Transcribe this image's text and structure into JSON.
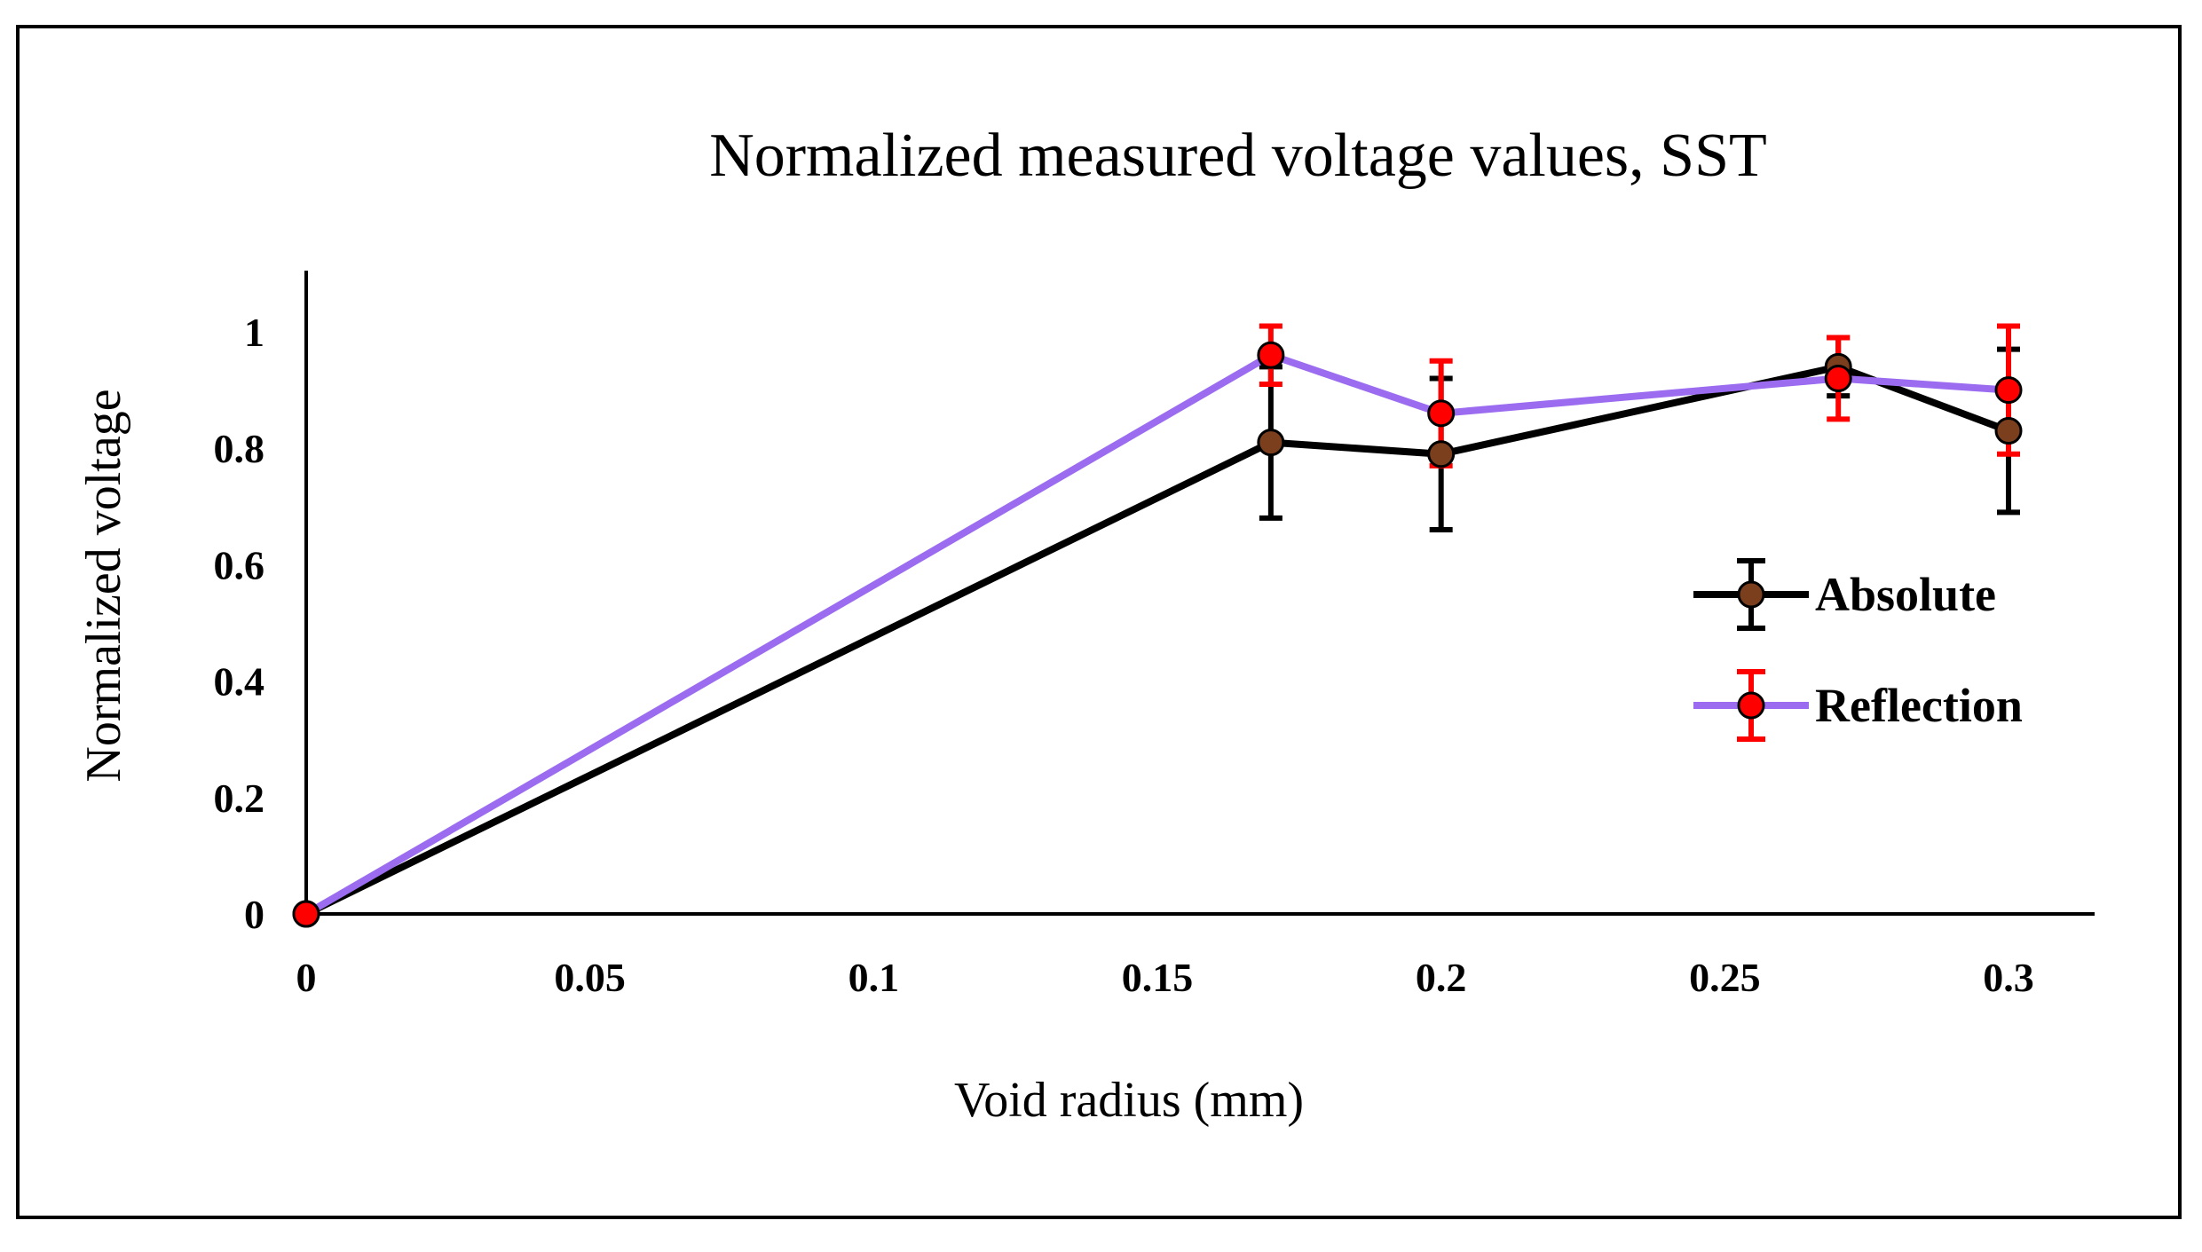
{
  "chart_data": {
    "type": "line",
    "title": "Normalized measured voltage values, SST",
    "xlabel": "Void radius (mm)",
    "ylabel": "Normalized voltage",
    "xlim": [
      0,
      0.3
    ],
    "ylim": [
      0,
      1.1
    ],
    "x_ticks": [
      "0",
      "0.05",
      "0.1",
      "0.15",
      "0.2",
      "0.25",
      "0.3"
    ],
    "y_ticks": [
      "0",
      "0.2",
      "0.4",
      "0.6",
      "0.8",
      "1"
    ],
    "legend_position": "right",
    "series": [
      {
        "name": "Absolute",
        "line_color": "#000000",
        "marker_color": "#7b3f1e",
        "error_color": "#000000",
        "x": [
          0,
          0.17,
          0.2,
          0.27,
          0.3
        ],
        "y": [
          0,
          0.81,
          0.79,
          0.94,
          0.83
        ],
        "error": [
          0,
          0.13,
          0.13,
          0.05,
          0.14
        ]
      },
      {
        "name": "Reflection",
        "line_color": "#9b6cf0",
        "marker_color": "#ff0000",
        "error_color": "#ff0000",
        "x": [
          0,
          0.17,
          0.2,
          0.27,
          0.3
        ],
        "y": [
          0,
          0.96,
          0.86,
          0.92,
          0.9
        ],
        "error": [
          0,
          0.05,
          0.09,
          0.07,
          0.11
        ]
      }
    ]
  }
}
